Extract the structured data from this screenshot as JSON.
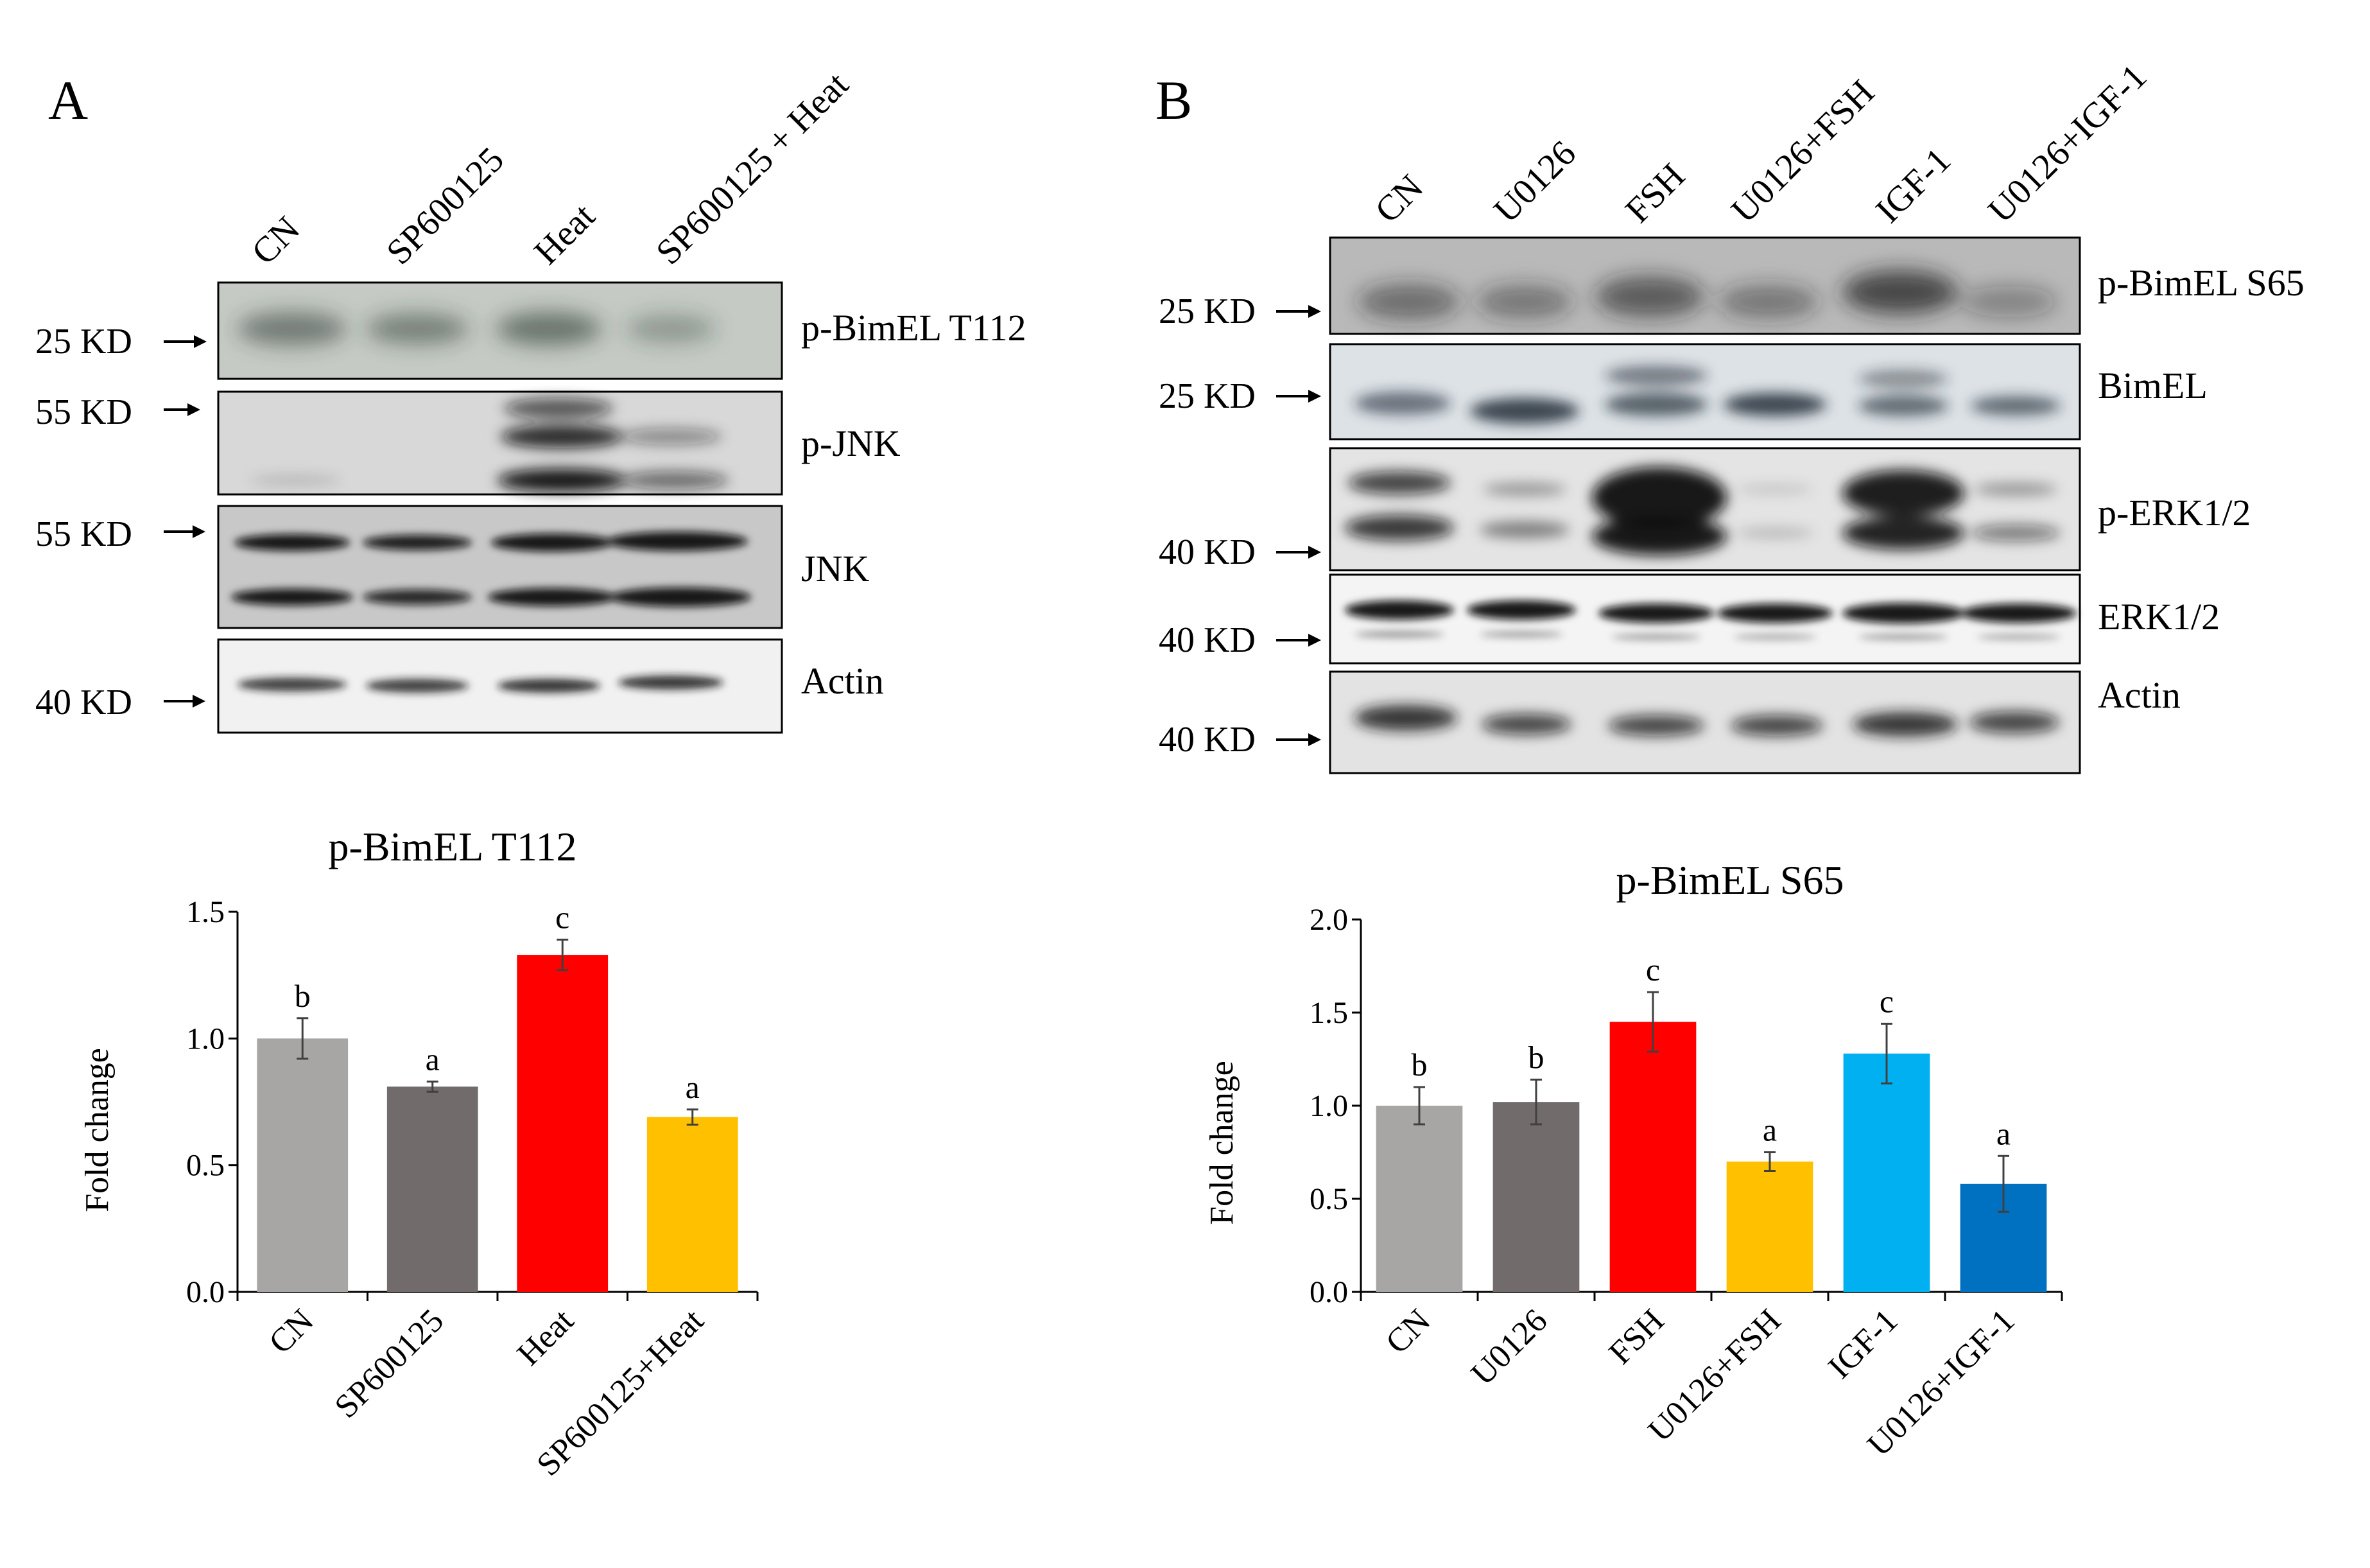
{
  "colors": {
    "grey_light": "#a8a6a5",
    "grey_dark": "#716b6b",
    "red": "#ff0000",
    "amber": "#ffc000",
    "light_blue": "#00b0f0",
    "blue": "#0070c0"
  },
  "panel_a": {
    "letter": "A",
    "blot_lanes": [
      "CN",
      "SP600125",
      "Heat",
      "SP600125 + Heat"
    ],
    "blots": [
      {
        "protein": "p-BimEL T112",
        "marker": "25 KD"
      },
      {
        "protein": "p-JNK",
        "marker": "55 KD"
      },
      {
        "protein": "JNK",
        "marker": "55 KD"
      },
      {
        "protein": "Actin",
        "marker": "40 KD"
      }
    ]
  },
  "panel_b": {
    "letter": "B",
    "blot_lanes": [
      "CN",
      "U0126",
      "FSH",
      "U0126+FSH",
      "IGF-1",
      "U0126+IGF-1"
    ],
    "blots": [
      {
        "protein": "p-BimEL S65",
        "marker": "25 KD"
      },
      {
        "protein": "BimEL",
        "marker": "25 KD"
      },
      {
        "protein": "p-ERK1/2",
        "marker": "40 KD"
      },
      {
        "protein": "ERK1/2",
        "marker": "40 KD"
      },
      {
        "protein": "Actin",
        "marker": "40 KD"
      }
    ]
  },
  "chart_data": [
    {
      "type": "bar",
      "title": "p-BimEL T112",
      "xlabel": "",
      "ylabel": "Fold change",
      "categories": [
        "CN",
        "SP600125",
        "Heat",
        "SP600125+Heat"
      ],
      "values": [
        1.0,
        0.81,
        1.33,
        0.69
      ],
      "errors": [
        0.08,
        0.02,
        0.06,
        0.03
      ],
      "significance": [
        "b",
        "a",
        "c",
        "a"
      ],
      "bar_colors": [
        "#a8a6a5",
        "#716b6b",
        "#ff0000",
        "#ffc000"
      ],
      "ylim": [
        0,
        1.5
      ],
      "yticks": [
        "0.0",
        "0.5",
        "1.0",
        "1.5"
      ],
      "grid": false
    },
    {
      "type": "bar",
      "title": "p-BimEL S65",
      "xlabel": "",
      "ylabel": "Fold change",
      "categories": [
        "CN",
        "U0126",
        "FSH",
        "U0126+FSH",
        "IGF-1",
        "U0126+IGF-1"
      ],
      "values": [
        1.0,
        1.02,
        1.45,
        0.7,
        1.28,
        0.58
      ],
      "errors": [
        0.1,
        0.12,
        0.16,
        0.05,
        0.16,
        0.15
      ],
      "significance": [
        "b",
        "b",
        "c",
        "a",
        "c",
        "a"
      ],
      "bar_colors": [
        "#a8a6a5",
        "#716b6b",
        "#ff0000",
        "#ffc000",
        "#00b0f0",
        "#0070c0"
      ],
      "ylim": [
        0,
        2.0
      ],
      "yticks": [
        "0.0",
        "0.5",
        "1.0",
        "1.5",
        "2.0"
      ],
      "grid": false
    }
  ]
}
